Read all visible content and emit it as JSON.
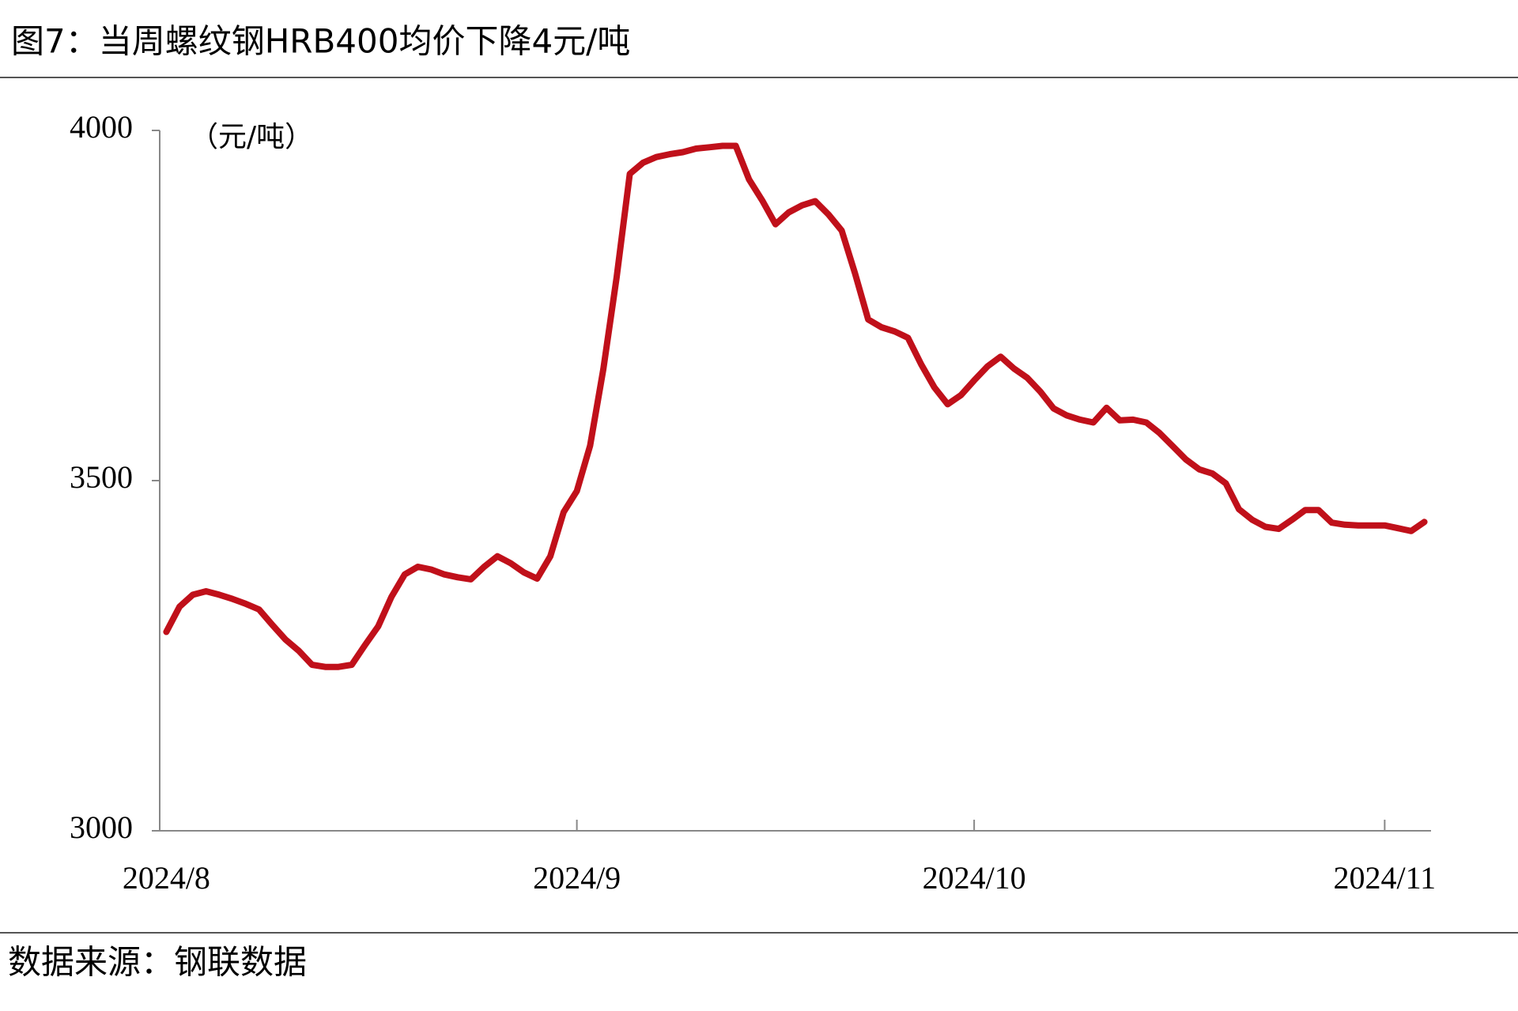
{
  "chart_data": {
    "type": "line",
    "title": "图7：当周螺纹钢HRB400均价下降4元/吨",
    "y_label": "（元/吨）",
    "source": "数据来源：钢联数据",
    "color": "#c0101a",
    "categories": [
      "2024/8",
      null,
      null,
      null,
      null,
      null,
      null,
      null,
      null,
      null,
      null,
      null,
      null,
      null,
      null,
      null,
      null,
      null,
      null,
      null,
      null,
      null,
      null,
      null,
      null,
      null,
      null,
      null,
      null,
      null,
      null,
      "2024/9",
      null,
      null,
      null,
      null,
      null,
      null,
      null,
      null,
      null,
      null,
      null,
      null,
      null,
      null,
      null,
      null,
      null,
      null,
      null,
      null,
      null,
      null,
      null,
      null,
      null,
      null,
      null,
      null,
      null,
      "2024/10",
      null,
      null,
      null,
      null,
      null,
      null,
      null,
      null,
      null,
      null,
      null,
      null,
      null,
      null,
      null,
      null,
      null,
      null,
      null,
      null,
      null,
      null,
      null,
      null,
      null,
      null,
      null,
      null,
      null,
      null,
      "2024/11",
      null,
      null,
      null
    ],
    "values": [
      3284,
      3320,
      3337,
      3342,
      3337,
      3331,
      3324,
      3316,
      3294,
      3273,
      3257,
      3237,
      3234,
      3234,
      3237,
      3265,
      3292,
      3334,
      3366,
      3377,
      3373,
      3366,
      3362,
      3359,
      3377,
      3392,
      3382,
      3369,
      3360,
      3392,
      3455,
      3485,
      3550,
      3659,
      3790,
      3938,
      3954,
      3962,
      3966,
      3969,
      3974,
      3976,
      3978,
      3978,
      3930,
      3900,
      3866,
      3883,
      3893,
      3899,
      3880,
      3857,
      3796,
      3730,
      3719,
      3713,
      3704,
      3666,
      3633,
      3609,
      3622,
      3643,
      3663,
      3677,
      3660,
      3647,
      3627,
      3603,
      3593,
      3587,
      3583,
      3604,
      3586,
      3587,
      3583,
      3568,
      3549,
      3530,
      3516,
      3510,
      3496,
      3459,
      3444,
      3434,
      3431,
      3444,
      3458,
      3458,
      3440,
      3437,
      3436,
      3436,
      3436,
      3432,
      3428,
      3441
    ],
    "ylim": [
      3000,
      4000
    ],
    "yticks": [
      3000,
      3500,
      4000
    ]
  }
}
